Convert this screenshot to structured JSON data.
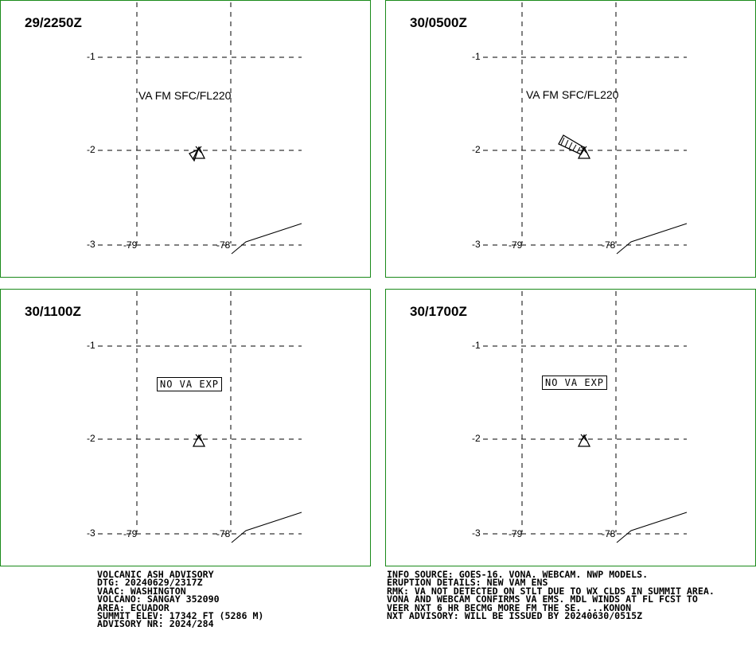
{
  "panels": [
    {
      "time": "29/2250Z",
      "label": "VA FM SFC/FL220",
      "label_type": "plain",
      "plume": "short"
    },
    {
      "time": "30/0500Z",
      "label": "VA FM SFC/FL220",
      "label_type": "plain",
      "plume": "long"
    },
    {
      "time": "30/1100Z",
      "label": "NO VA EXP",
      "label_type": "boxed",
      "plume": "none"
    },
    {
      "time": "30/1700Z",
      "label": "NO VA EXP",
      "label_type": "boxed",
      "plume": "none"
    }
  ],
  "grid": {
    "lat_labels": [
      "-1",
      "-2",
      "-3"
    ],
    "lon_labels": [
      "-79",
      "-78"
    ]
  },
  "advisory_left": [
    "VOLCANIC ASH ADVISORY",
    "DTG: 20240629/2317Z",
    "VAAC: WASHINGTON",
    "VOLCANO: SANGAY 352090",
    "AREA: ECUADOR",
    "SUMMIT ELEV: 17342 FT (5286 M)",
    "ADVISORY NR: 2024/284"
  ],
  "advisory_right": [
    "INFO SOURCE: GOES-16. VONA. WEBCAM. NWP MODELS.",
    "ERUPTION DETAILS: NEW VAM ENS",
    "RMK: VA NOT DETECTED ON STLT DUE TO WX CLDS IN SUMMIT AREA.",
    "VONA AND WEBCAM CONFIRMS VA EMS. MDL WINDS AT FL FCST TO",
    "VEER NXT 6 HR BECMG MORE FM THE SE. ...KONON",
    "NXT ADVISORY: WILL BE ISSUED BY 20240630/0515Z"
  ],
  "colors": {
    "panel_border": "#1a8a1a",
    "ink": "#000000"
  }
}
